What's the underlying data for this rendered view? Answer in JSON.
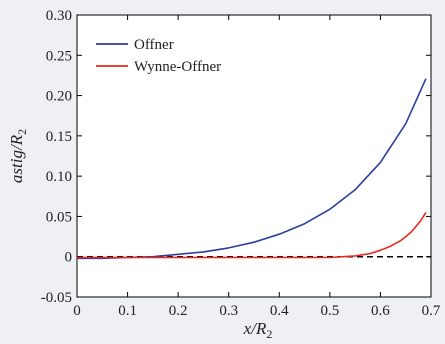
{
  "chart_data": {
    "type": "line",
    "xlabel": "x/R",
    "xlabel_sub": "2",
    "ylabel": "astig/R",
    "ylabel_sub": "2",
    "xlim": [
      0,
      0.7
    ],
    "ylim": [
      -0.05,
      0.3
    ],
    "x_ticks": [
      0,
      0.1,
      0.2,
      0.3,
      0.4,
      0.5,
      0.6,
      0.7
    ],
    "x_tick_labels": [
      "0",
      "0.1",
      "0.2",
      "0.3",
      "0.4",
      "0.5",
      "0.6",
      "0.7"
    ],
    "y_ticks": [
      -0.05,
      0,
      0.05,
      0.1,
      0.15,
      0.2,
      0.25,
      0.3
    ],
    "y_tick_labels": [
      "-0.05",
      "0",
      "0.05",
      "0.10",
      "0.15",
      "0.20",
      "0.25",
      "0.30"
    ],
    "grid": false,
    "legend_position": "top-left",
    "zero_line": {
      "y": 0,
      "style": "dashed",
      "color": "#000000"
    },
    "series": [
      {
        "name": "Offner",
        "color": "#2b3f9e",
        "x": [
          0,
          0.05,
          0.1,
          0.15,
          0.2,
          0.25,
          0.3,
          0.35,
          0.4,
          0.45,
          0.5,
          0.55,
          0.6,
          0.65,
          0.69
        ],
        "y": [
          -0.002,
          -0.002,
          -0.001,
          0.0,
          0.003,
          0.006,
          0.011,
          0.018,
          0.028,
          0.041,
          0.059,
          0.083,
          0.117,
          0.165,
          0.221
        ]
      },
      {
        "name": "Wynne-Offner",
        "color": "#e8281e",
        "x": [
          0,
          0.1,
          0.2,
          0.3,
          0.4,
          0.45,
          0.5,
          0.55,
          0.58,
          0.6,
          0.62,
          0.64,
          0.66,
          0.68,
          0.69
        ],
        "y": [
          -0.001,
          -0.001,
          -0.001,
          -0.001,
          -0.001,
          -0.001,
          -0.001,
          0.001,
          0.004,
          0.008,
          0.013,
          0.02,
          0.03,
          0.045,
          0.055
        ]
      }
    ]
  }
}
